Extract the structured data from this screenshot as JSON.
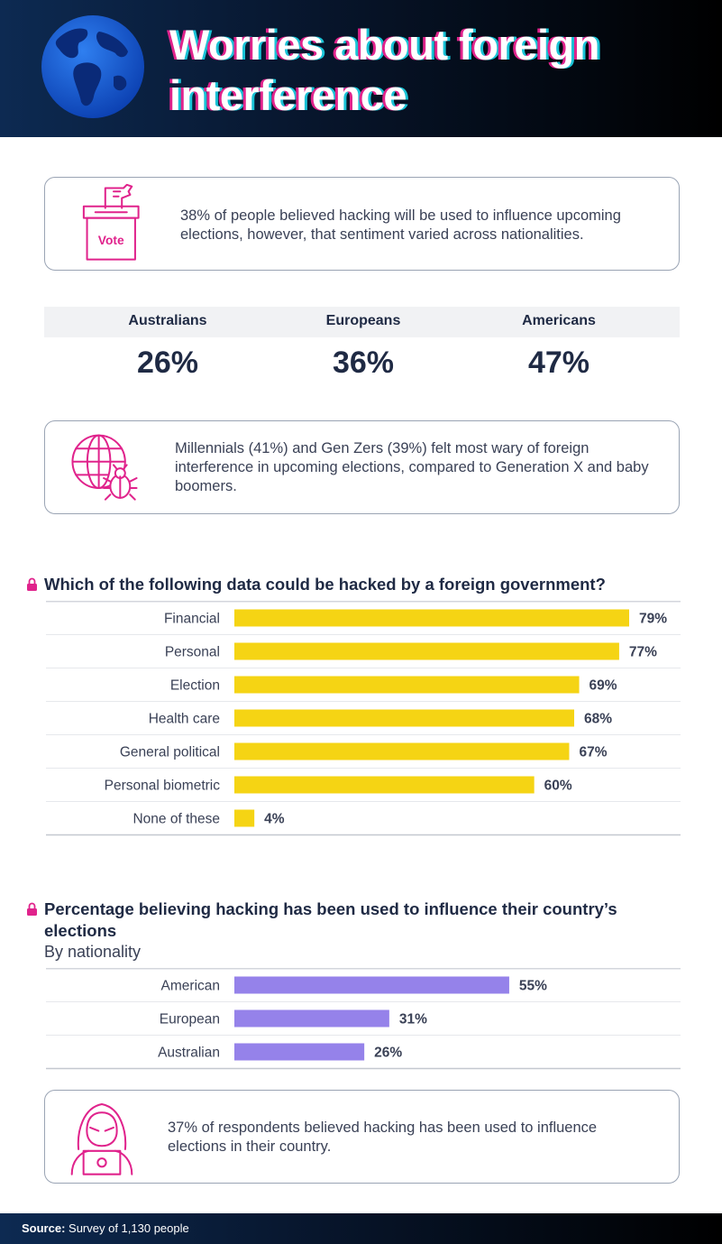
{
  "header": {
    "title": "Worries about foreign interference",
    "icon": "globe-icon"
  },
  "cards": [
    {
      "icon": "ballot-box-icon",
      "icon_label": "Vote",
      "text": "38% of people believed hacking will be used to influence upcoming elections, however, that sentiment varied across nationalities."
    },
    {
      "icon": "globe-bug-icon",
      "text": "Millennials (41%) and Gen Zers (39%) felt most wary of foreign interference in upcoming elections, compared to Generation X and baby boomers."
    },
    {
      "icon": "hacker-laptop-icon",
      "text": "37% of respondents believed hacking has been used to influence elections in their country."
    }
  ],
  "nationality_stats": [
    {
      "label": "Australians",
      "value": "26%"
    },
    {
      "label": "Europeans",
      "value": "36%"
    },
    {
      "label": "Americans",
      "value": "47%"
    }
  ],
  "colors": {
    "accent_pink": "#e0238c",
    "bar_yellow": "#f5d414",
    "bar_purple": "#9582ea",
    "navy": "#1f2a44"
  },
  "chart_data": [
    {
      "type": "bar",
      "orientation": "horizontal",
      "title": "Which of the following data could be hacked by a foreign government?",
      "categories": [
        "Financial",
        "Personal",
        "Election",
        "Health care",
        "General political",
        "Personal biometric",
        "None of these"
      ],
      "values": [
        79,
        77,
        69,
        68,
        67,
        60,
        4
      ],
      "value_labels": [
        "79%",
        "77%",
        "69%",
        "68%",
        "67%",
        "60%",
        "4%"
      ],
      "color": "#f5d414"
    },
    {
      "type": "bar",
      "orientation": "horizontal",
      "title": "Percentage believing hacking has been used to influence their country’s elections",
      "subtitle": "By nationality",
      "categories": [
        "American",
        "European",
        "Australian"
      ],
      "values": [
        55,
        31,
        26
      ],
      "value_labels": [
        "55%",
        "31%",
        "26%"
      ],
      "color": "#9582ea"
    }
  ],
  "footer": {
    "source_label": "Source:",
    "source_text": "Survey of 1,130 people"
  }
}
